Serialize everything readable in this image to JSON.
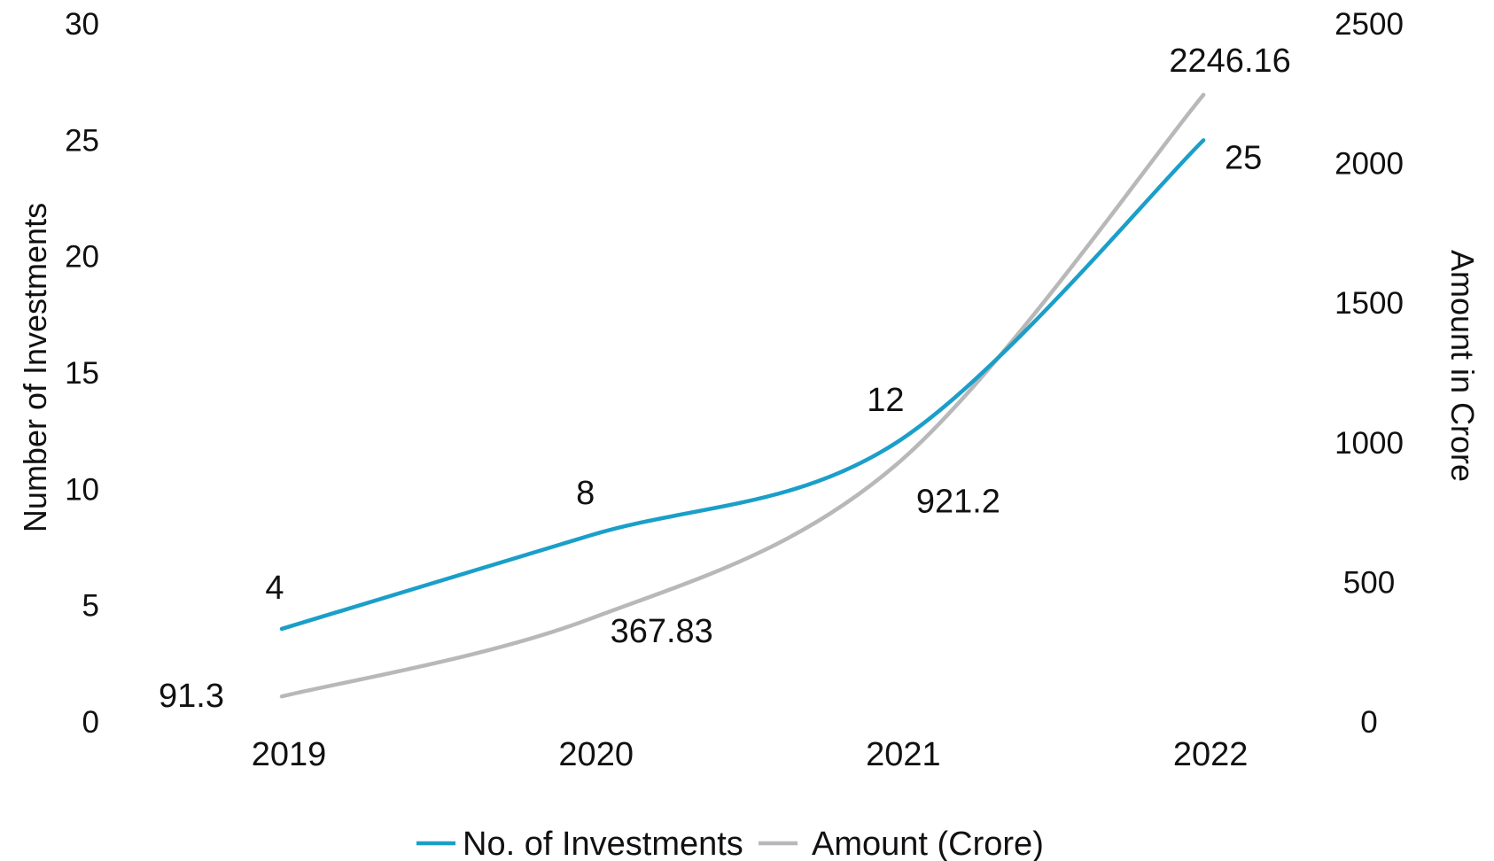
{
  "chart_data": {
    "type": "line",
    "categories": [
      "2019",
      "2020",
      "2021",
      "2022"
    ],
    "series": [
      {
        "name": "No. of Investments",
        "values": [
          4,
          8,
          12,
          25
        ],
        "labels": [
          "4",
          "8",
          "12",
          "25"
        ],
        "axis": "left",
        "color": "#1a9fc9"
      },
      {
        "name": "Amount (Crore)",
        "values": [
          91.3,
          367.83,
          921.2,
          2246.16
        ],
        "labels": [
          "91.3",
          "367.83",
          "921.2",
          "2246.16"
        ],
        "axis": "right",
        "color": "#b8b8b8"
      }
    ],
    "ylabel": "Number of Investments",
    "y2label": "Amount in Crore",
    "ylim": [
      0,
      30
    ],
    "y2lim": [
      0,
      2500
    ],
    "yticks": [
      "0",
      "5",
      "10",
      "15",
      "20",
      "25",
      "30"
    ],
    "y2ticks": [
      "0",
      "500",
      "1000",
      "1500",
      "2000",
      "2500"
    ],
    "grid": false,
    "legend": "bottom",
    "smooth": true
  }
}
